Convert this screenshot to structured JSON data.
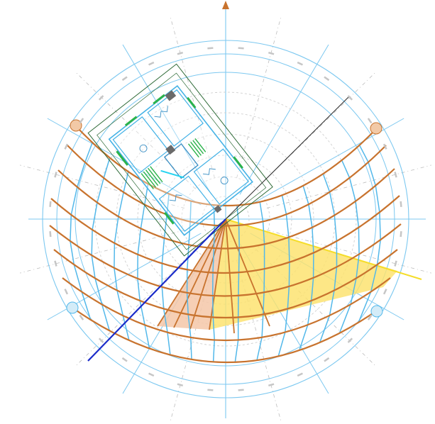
{
  "diagram": {
    "kind": "sun-path-diagram",
    "has_printed_text": false,
    "north_marker": "arrow",
    "colors": {
      "grid_blue": "#7cc8f0",
      "grid_dashed": "#bcbcbc",
      "sun_path": "#c8732e",
      "sun_arc_dot": "#f2c9a6",
      "blue_ray": "#1a2bc9",
      "sun_fan_yellow": "#fde26b",
      "sun_fan_peach": "#f5c7a8",
      "floorplan_green": "#2f6b38",
      "floorplan_blue": "#44b2e6",
      "floorplan_accent": "#2bb34b",
      "north_arrow": "#c8732e"
    },
    "features": [
      "horizon-circle",
      "altitude-rings",
      "azimuth-spokes",
      "sun-path-arcs",
      "hour-lines",
      "building-floorplan",
      "sun-angle-fan",
      "north-arrow"
    ]
  }
}
